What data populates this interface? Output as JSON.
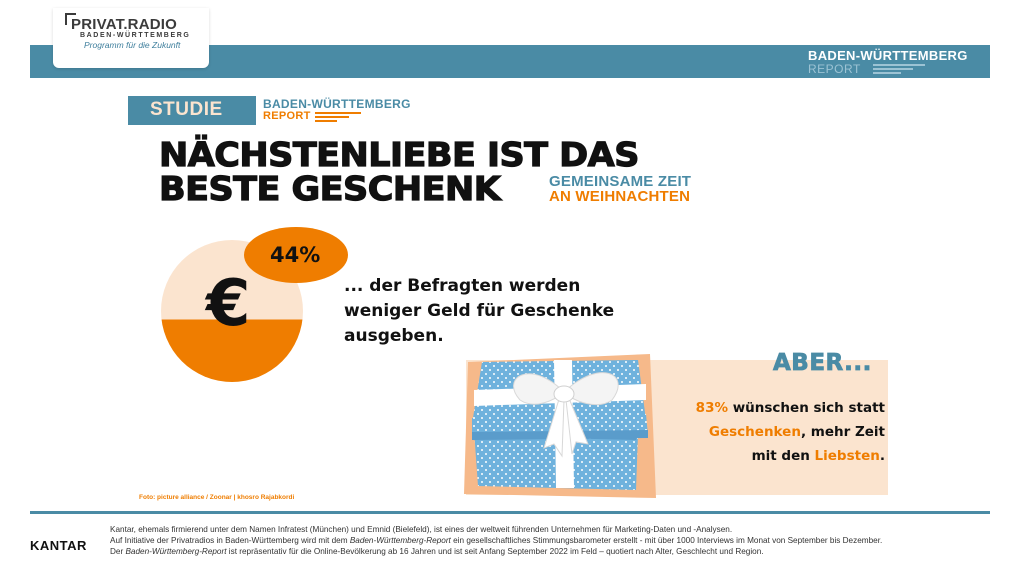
{
  "header": {
    "logo": {
      "title": "PRIVAT.RADIO",
      "subtitle": "BADEN-WÜRTTEMBERG",
      "tagline": "Programm für die Zukunft"
    },
    "report_brand": {
      "title": "BADEN-WÜRTTEMBERG",
      "subtitle": "REPORT"
    }
  },
  "badge": {
    "label": "STUDIE",
    "brand_title": "BADEN-WÜRTTEMBERG",
    "brand_subtitle": "REPORT"
  },
  "headline": {
    "line1": "NÄCHSTENLIEBE IST DAS",
    "line2": "BESTE GESCHENK",
    "sub_line1": "GEMEINSAME ZEIT",
    "sub_line2": "AN WEIHNACHTEN"
  },
  "stat": {
    "symbol": "€",
    "percent": "44%",
    "lines": [
      "... der Befragten werden",
      "weniger Geld für Geschenke",
      "ausgeben."
    ]
  },
  "aber": {
    "heading": "ABER...",
    "line1_highlight": "83%",
    "line1_rest": " wünschen sich statt",
    "line2_highlight": "Geschenken",
    "line2_rest": ", mehr Zeit",
    "line3_pre": "mit den ",
    "line3_highlight": "Liebsten",
    "line3_post": "."
  },
  "photo_credit": "Foto: picture alliance / Zoonar | khosro Rajabkordi",
  "footer": {
    "logo": "KANTAR",
    "line1": "Kantar, ehemals firmierend unter dem Namen Infratest (München) und Emnid  (Bielefeld), ist eines der weltweit führenden Unternehmen für Marketing-Daten und -Analysen.",
    "line2_a": "Auf Initiative der Privatradios in Baden-Württemberg wird mit dem ",
    "line2_b": "Baden-Württemberg-Report",
    "line2_c": " ein gesellschaftliches Stimmungsbarometer erstellt - mit über 1000 Interviews im Monat von September bis Dezember.",
    "line3_a": "Der ",
    "line3_b": "Baden-Württemberg-Report",
    "line3_c": " ist repräsentativ für die Online-Bevölkerung ab 16 Jahren und ist seit Anfang September 2022 im Feld – quotiert nach Alter, Geschlecht und Region."
  },
  "colors": {
    "teal": "#4a8ba5",
    "orange": "#ef7d00",
    "peach": "#fbe4cf",
    "gift_blue": "#6fb2dd"
  },
  "icons": {
    "gift": "gift-box-image",
    "euro": "euro-symbol"
  }
}
